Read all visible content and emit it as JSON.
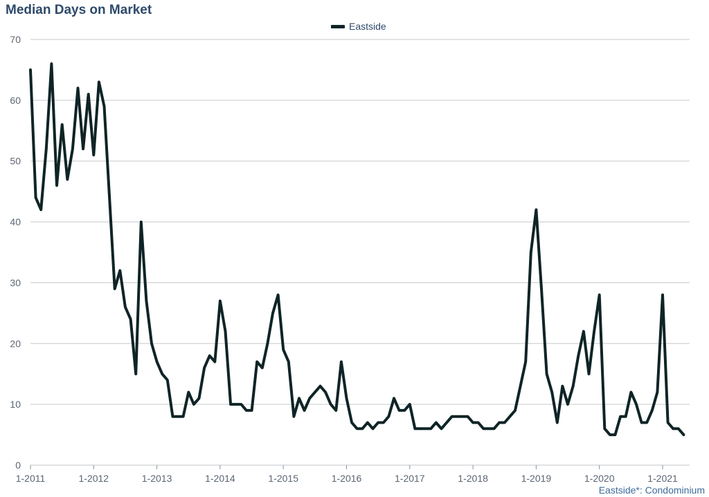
{
  "title": "Median Days on Market",
  "legend": {
    "label": "Eastside",
    "color": "#0f2426"
  },
  "footnote": "Eastside*: Condominium",
  "chart_data": {
    "type": "line",
    "title": "Median Days on Market",
    "xlabel": "",
    "ylabel": "",
    "ylim": [
      0,
      70
    ],
    "yticks": [
      0,
      10,
      20,
      30,
      40,
      50,
      60,
      70
    ],
    "xticks": [
      "1-2011",
      "1-2012",
      "1-2013",
      "1-2014",
      "1-2015",
      "1-2016",
      "1-2017",
      "1-2018",
      "1-2019",
      "1-2020",
      "1-2021"
    ],
    "x_start": "1-2011",
    "x_end": "5-2021",
    "grid": true,
    "legend_position": "top-center",
    "series": [
      {
        "name": "Eastside",
        "color": "#0f2426",
        "x": [
          "1-2011",
          "2-2011",
          "3-2011",
          "4-2011",
          "5-2011",
          "6-2011",
          "7-2011",
          "8-2011",
          "9-2011",
          "10-2011",
          "11-2011",
          "12-2011",
          "1-2012",
          "2-2012",
          "3-2012",
          "4-2012",
          "5-2012",
          "6-2012",
          "7-2012",
          "8-2012",
          "9-2012",
          "10-2012",
          "11-2012",
          "12-2012",
          "1-2013",
          "2-2013",
          "3-2013",
          "4-2013",
          "5-2013",
          "6-2013",
          "7-2013",
          "8-2013",
          "9-2013",
          "10-2013",
          "11-2013",
          "12-2013",
          "1-2014",
          "2-2014",
          "3-2014",
          "4-2014",
          "5-2014",
          "6-2014",
          "7-2014",
          "8-2014",
          "9-2014",
          "10-2014",
          "11-2014",
          "12-2014",
          "1-2015",
          "2-2015",
          "3-2015",
          "4-2015",
          "5-2015",
          "6-2015",
          "7-2015",
          "8-2015",
          "9-2015",
          "10-2015",
          "11-2015",
          "12-2015",
          "1-2016",
          "2-2016",
          "3-2016",
          "4-2016",
          "5-2016",
          "6-2016",
          "7-2016",
          "8-2016",
          "9-2016",
          "10-2016",
          "11-2016",
          "12-2016",
          "1-2017",
          "2-2017",
          "3-2017",
          "4-2017",
          "5-2017",
          "6-2017",
          "7-2017",
          "8-2017",
          "9-2017",
          "10-2017",
          "11-2017",
          "12-2017",
          "1-2018",
          "2-2018",
          "3-2018",
          "4-2018",
          "5-2018",
          "6-2018",
          "7-2018",
          "8-2018",
          "9-2018",
          "10-2018",
          "11-2018",
          "12-2018",
          "1-2019",
          "2-2019",
          "3-2019",
          "4-2019",
          "5-2019",
          "6-2019",
          "7-2019",
          "8-2019",
          "9-2019",
          "10-2019",
          "11-2019",
          "12-2019",
          "1-2020",
          "2-2020",
          "3-2020",
          "4-2020",
          "5-2020",
          "6-2020",
          "7-2020",
          "8-2020",
          "9-2020",
          "10-2020",
          "11-2020",
          "12-2020",
          "1-2021",
          "2-2021",
          "3-2021",
          "4-2021",
          "5-2021"
        ],
        "values": [
          65,
          44,
          42,
          52,
          66,
          46,
          56,
          47,
          52,
          62,
          52,
          61,
          51,
          63,
          59,
          44,
          29,
          32,
          26,
          24,
          15,
          40,
          27,
          20,
          17,
          15,
          14,
          8,
          8,
          8,
          12,
          10,
          11,
          16,
          18,
          17,
          27,
          22,
          10,
          10,
          10,
          9,
          9,
          17,
          16,
          20,
          25,
          28,
          19,
          17,
          8,
          11,
          9,
          11,
          12,
          13,
          12,
          10,
          9,
          17,
          11,
          7,
          6,
          6,
          7,
          6,
          7,
          7,
          8,
          11,
          9,
          9,
          10,
          6,
          6,
          6,
          6,
          7,
          6,
          7,
          8,
          8,
          8,
          8,
          7,
          7,
          6,
          6,
          6,
          7,
          7,
          8,
          9,
          13,
          17,
          35,
          42,
          29,
          15,
          12,
          7,
          13,
          10,
          13,
          18,
          22,
          15,
          22,
          28,
          6,
          5,
          5,
          8,
          8,
          12,
          10,
          7,
          7,
          9,
          12,
          28,
          7,
          6,
          6,
          5
        ]
      }
    ]
  }
}
